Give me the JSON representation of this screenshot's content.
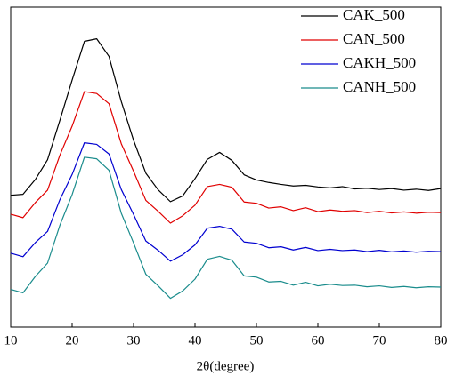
{
  "chart_data": {
    "type": "line",
    "xlabel": "2θ(degree)",
    "x": [
      10,
      12,
      14,
      16,
      18,
      20,
      22,
      24,
      26,
      28,
      30,
      32,
      34,
      36,
      38,
      40,
      42,
      44,
      46,
      48,
      50,
      52,
      54,
      56,
      58,
      60,
      62,
      64,
      66,
      68,
      70,
      72,
      74,
      76,
      78,
      80
    ],
    "series": [
      {
        "name": "CAK_500",
        "color": "#000000",
        "values": [
          41.2,
          41.5,
          46.1,
          52.3,
          64.6,
          77.2,
          89.3,
          90.1,
          84.6,
          70.5,
          58.4,
          48.1,
          42.9,
          39.2,
          41.0,
          46.4,
          52.4,
          54.6,
          52.1,
          47.6,
          46.0,
          45.2,
          44.6,
          44.1,
          44.3,
          43.8,
          43.5,
          43.9,
          43.2,
          43.4,
          43.0,
          43.3,
          42.8,
          43.1,
          42.7,
          43.3
        ]
      },
      {
        "name": "CAN_500",
        "color": "#e00000",
        "values": [
          35.3,
          34.2,
          38.9,
          42.8,
          53.7,
          62.8,
          73.6,
          73.0,
          69.8,
          57.3,
          48.7,
          39.6,
          36.2,
          32.5,
          34.8,
          38.1,
          43.9,
          44.6,
          43.7,
          39.1,
          38.7,
          37.2,
          37.6,
          36.4,
          37.3,
          36.1,
          36.6,
          36.2,
          36.4,
          35.8,
          36.2,
          35.7,
          36.0,
          35.6,
          35.9,
          35.8
        ]
      },
      {
        "name": "CAKH_500",
        "color": "#0000d0",
        "values": [
          23.1,
          22.0,
          26.4,
          29.9,
          39.8,
          47.7,
          57.6,
          57.1,
          54.1,
          43.0,
          35.2,
          26.9,
          24.0,
          20.6,
          22.6,
          25.7,
          30.9,
          31.5,
          30.6,
          26.6,
          26.2,
          24.8,
          25.1,
          24.1,
          24.9,
          23.9,
          24.3,
          23.9,
          24.1,
          23.6,
          24.0,
          23.5,
          23.8,
          23.4,
          23.7,
          23.6
        ]
      },
      {
        "name": "CANH_500",
        "color": "#1a8c8c",
        "values": [
          11.8,
          10.7,
          15.8,
          20.0,
          31.8,
          41.4,
          53.1,
          52.6,
          49.0,
          35.6,
          26.3,
          16.5,
          12.9,
          9.0,
          11.3,
          15.0,
          21.2,
          22.1,
          20.9,
          16.0,
          15.6,
          14.1,
          14.3,
          13.1,
          14.0,
          12.9,
          13.4,
          13.0,
          13.1,
          12.6,
          12.9,
          12.4,
          12.7,
          12.3,
          12.6,
          12.5
        ]
      }
    ],
    "xlim": [
      10,
      80
    ],
    "xticks": [
      10,
      20,
      30,
      40,
      50,
      60,
      70,
      80
    ],
    "ylim": [
      0,
      100
    ],
    "legend": "upper right"
  }
}
